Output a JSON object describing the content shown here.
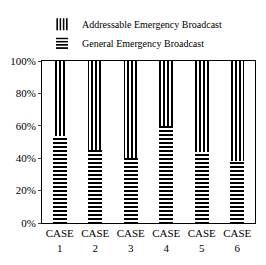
{
  "chart_data": {
    "type": "bar",
    "stacked": true,
    "categories": [
      "CASE 1",
      "CASE 2",
      "CASE 3",
      "CASE 4",
      "CASE 5",
      "CASE 6"
    ],
    "series": [
      {
        "name": "General Emergency Broadcast",
        "color": "#000000",
        "marker": "horizontal_stripes",
        "values": [
          54,
          45,
          40,
          60,
          44,
          38
        ]
      },
      {
        "name": "Addressable Emergency Broadcast",
        "color": "#000000",
        "marker": "vertical_stripes",
        "values": [
          46,
          55,
          60,
          40,
          56,
          62
        ]
      }
    ],
    "ylim": [
      0,
      100
    ],
    "yticks": [
      {
        "value": 0,
        "label": "0%"
      },
      {
        "value": 20,
        "label": "20%"
      },
      {
        "value": 40,
        "label": "40%"
      },
      {
        "value": 60,
        "label": "60%"
      },
      {
        "value": 80,
        "label": "80%"
      },
      {
        "value": 100,
        "label": "100%"
      }
    ],
    "grid": false,
    "legend": "top-left"
  }
}
